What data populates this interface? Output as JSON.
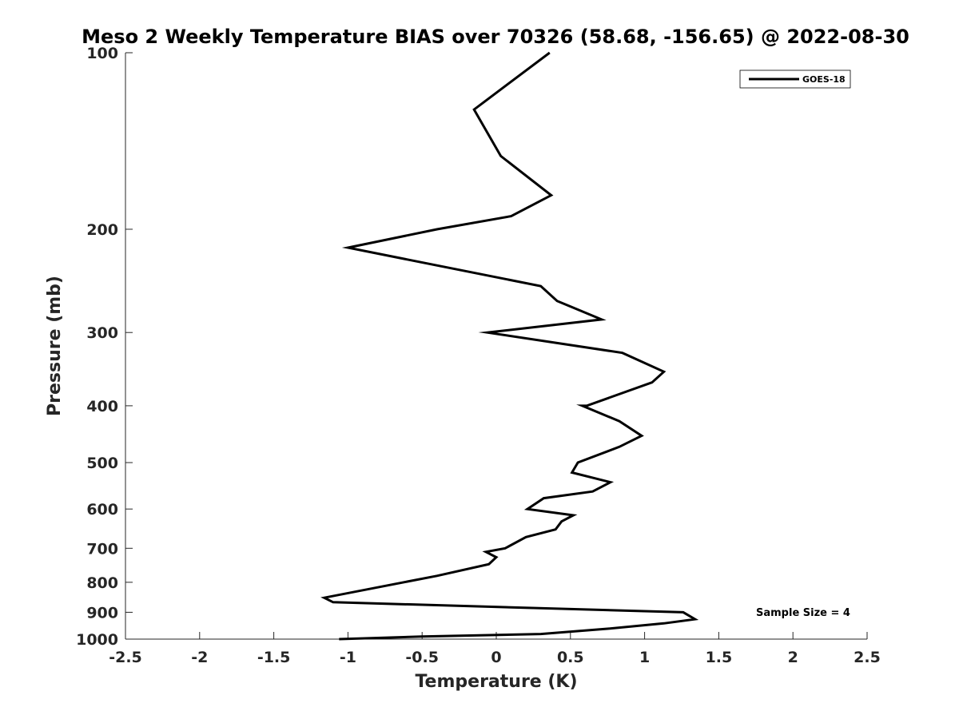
{
  "chart_data": {
    "type": "line",
    "title": "Meso 2 Weekly Temperature BIAS over 70326 (58.68, -156.65) @ 2022-08-30",
    "xlabel": "Temperature (K)",
    "ylabel": "Pressure (mb)",
    "xlim": [
      -2.5,
      2.5
    ],
    "ylim": [
      100,
      1000
    ],
    "y_scale": "log",
    "y_reversed": true,
    "x_ticks": [
      -2.5,
      -2,
      -1.5,
      -1,
      -0.5,
      0,
      0.5,
      1,
      1.5,
      2,
      2.5
    ],
    "x_tick_labels": [
      "-2.5",
      "-2",
      "-1.5",
      "-1",
      "-0.5",
      "0",
      "0.5",
      "1",
      "1.5",
      "2",
      "2.5"
    ],
    "y_ticks": [
      100,
      200,
      300,
      400,
      500,
      600,
      700,
      800,
      900,
      1000
    ],
    "y_tick_labels": [
      "100",
      "200",
      "300",
      "400",
      "500",
      "600",
      "700",
      "800",
      "900",
      "1000"
    ],
    "grid": false,
    "legend": {
      "placement": "top-right",
      "entries": [
        "GOES-18"
      ]
    },
    "annotations": [
      {
        "text": "Sample Size = 4",
        "placement": "bottom-right"
      }
    ],
    "series": [
      {
        "name": "GOES-18",
        "color": "#000000",
        "points": [
          {
            "x": 0.36,
            "y": 100
          },
          {
            "x": -0.15,
            "y": 125
          },
          {
            "x": 0.03,
            "y": 150
          },
          {
            "x": 0.37,
            "y": 175
          },
          {
            "x": 0.1,
            "y": 190
          },
          {
            "x": -0.4,
            "y": 200
          },
          {
            "x": -1.0,
            "y": 215
          },
          {
            "x": 0.3,
            "y": 250
          },
          {
            "x": 0.41,
            "y": 265
          },
          {
            "x": 0.71,
            "y": 285
          },
          {
            "x": -0.06,
            "y": 300
          },
          {
            "x": 0.85,
            "y": 325
          },
          {
            "x": 1.13,
            "y": 350
          },
          {
            "x": 1.05,
            "y": 365
          },
          {
            "x": 0.61,
            "y": 400
          },
          {
            "x": 0.58,
            "y": 400
          },
          {
            "x": 0.83,
            "y": 425
          },
          {
            "x": 0.98,
            "y": 450
          },
          {
            "x": 0.83,
            "y": 470
          },
          {
            "x": 0.55,
            "y": 500
          },
          {
            "x": 0.51,
            "y": 520
          },
          {
            "x": 0.77,
            "y": 540
          },
          {
            "x": 0.65,
            "y": 560
          },
          {
            "x": 0.32,
            "y": 575
          },
          {
            "x": 0.21,
            "y": 600
          },
          {
            "x": 0.52,
            "y": 615
          },
          {
            "x": 0.44,
            "y": 630
          },
          {
            "x": 0.4,
            "y": 650
          },
          {
            "x": 0.2,
            "y": 670
          },
          {
            "x": 0.06,
            "y": 700
          },
          {
            "x": -0.07,
            "y": 710
          },
          {
            "x": 0.0,
            "y": 725
          },
          {
            "x": -0.05,
            "y": 745
          },
          {
            "x": -0.4,
            "y": 780
          },
          {
            "x": -1.16,
            "y": 850
          },
          {
            "x": -1.1,
            "y": 865
          },
          {
            "x": 1.26,
            "y": 900
          },
          {
            "x": 1.34,
            "y": 925
          },
          {
            "x": 1.13,
            "y": 940
          },
          {
            "x": 0.75,
            "y": 960
          },
          {
            "x": 0.3,
            "y": 980
          },
          {
            "x": -0.5,
            "y": 990
          },
          {
            "x": -1.06,
            "y": 1000
          }
        ]
      }
    ]
  }
}
